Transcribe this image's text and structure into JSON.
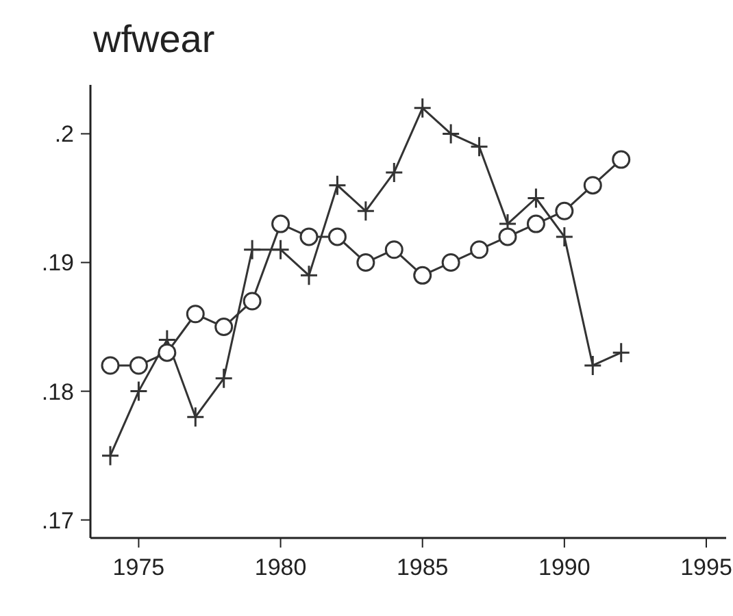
{
  "chart_data": {
    "type": "line",
    "title": "wfwear",
    "x": [
      1974,
      1975,
      1976,
      1977,
      1978,
      1979,
      1980,
      1981,
      1982,
      1983,
      1984,
      1985,
      1986,
      1987,
      1988,
      1989,
      1990,
      1991,
      1992
    ],
    "series": [
      {
        "color": "#333333",
        "marker": "cross",
        "values": [
          0.175,
          0.18,
          0.184,
          0.178,
          0.181,
          0.191,
          0.191,
          0.189,
          0.196,
          0.194,
          0.197,
          0.202,
          0.2,
          0.199,
          0.193,
          0.195,
          0.192,
          0.182,
          0.183
        ]
      },
      {
        "color": "#333333",
        "marker": "circle",
        "values": [
          0.182,
          0.182,
          0.183,
          0.186,
          0.185,
          0.187,
          0.193,
          0.192,
          0.192,
          0.19,
          0.191,
          0.189,
          0.19,
          0.191,
          0.192,
          0.193,
          0.194,
          0.196,
          0.198
        ]
      }
    ],
    "xlim": [
      1973.3,
      1995.7
    ],
    "xticks": [
      1975,
      1980,
      1985,
      1990,
      1995
    ],
    "ylim": [
      0.1686,
      0.2038
    ],
    "yticks": [
      {
        "value": 0.17,
        "label": ".17"
      },
      {
        "value": 0.18,
        "label": ".18"
      },
      {
        "value": 0.19,
        "label": ".19"
      },
      {
        "value": 0.2,
        "label": ".2"
      }
    ],
    "line_style": "solid"
  }
}
